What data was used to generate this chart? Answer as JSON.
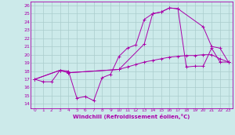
{
  "xlabel": "Windchill (Refroidissement éolien,°C)",
  "bg_color": "#cceaea",
  "grid_color": "#aacccc",
  "line_color": "#aa00aa",
  "xlim": [
    -0.5,
    23.5
  ],
  "ylim": [
    13.5,
    26.5
  ],
  "xticks": [
    0,
    1,
    2,
    3,
    4,
    5,
    6,
    7,
    8,
    9,
    10,
    11,
    12,
    13,
    14,
    15,
    16,
    17,
    18,
    19,
    20,
    21,
    22,
    23
  ],
  "yticks": [
    14,
    15,
    16,
    17,
    18,
    19,
    20,
    21,
    22,
    23,
    24,
    25,
    26
  ],
  "line1_x": [
    0,
    1,
    2,
    3,
    4,
    5,
    6,
    7,
    8,
    9,
    10,
    11,
    12,
    13,
    14,
    15,
    16,
    17,
    18,
    19,
    20,
    21,
    22,
    23
  ],
  "line1_y": [
    17.0,
    16.7,
    16.7,
    18.1,
    18.0,
    14.7,
    14.9,
    14.4,
    17.2,
    17.6,
    19.8,
    20.8,
    21.2,
    24.3,
    25.0,
    25.2,
    25.7,
    25.6,
    18.5,
    18.6,
    18.6,
    20.8,
    19.1,
    19.1
  ],
  "line2_x": [
    0,
    3,
    4,
    10,
    13,
    14,
    15,
    16,
    17,
    20,
    21,
    22,
    23
  ],
  "line2_y": [
    17.0,
    18.1,
    17.8,
    18.2,
    21.3,
    25.0,
    25.2,
    25.7,
    25.6,
    23.4,
    21.0,
    20.8,
    19.1
  ],
  "line3_x": [
    0,
    3,
    4,
    10,
    11,
    12,
    13,
    14,
    15,
    16,
    17,
    18,
    19,
    20,
    21,
    22,
    23
  ],
  "line3_y": [
    17.0,
    18.1,
    17.8,
    18.2,
    18.5,
    18.8,
    19.1,
    19.3,
    19.5,
    19.7,
    19.8,
    19.9,
    19.9,
    20.0,
    20.0,
    19.5,
    19.1
  ]
}
